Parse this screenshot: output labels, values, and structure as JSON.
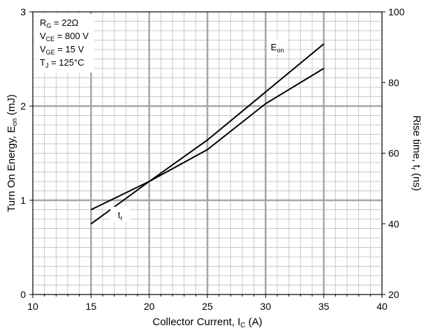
{
  "chart_data": {
    "type": "line",
    "xlim": [
      10,
      40
    ],
    "ylim_left": [
      0,
      3
    ],
    "ylim_right": [
      20,
      100
    ],
    "x_ticks": [
      10,
      15,
      20,
      25,
      30,
      35,
      40
    ],
    "y_left_ticks": [
      0,
      1,
      2,
      3
    ],
    "y_right_ticks": [
      20,
      40,
      60,
      80,
      100
    ],
    "grid": true,
    "xlabel": {
      "main": "Collector Current, I",
      "sub": "C",
      "unit": " (A)"
    },
    "ylabel_left": {
      "main": "Turn On Energy, E",
      "sub": "on",
      "unit": " (mJ)"
    },
    "ylabel_right": {
      "main": "Rise time, t",
      "sub": "r",
      "unit": " (ns)"
    },
    "series": [
      {
        "name": "E",
        "name_sub": "on",
        "axis": "left",
        "x": [
          15,
          20,
          25,
          30,
          35
        ],
        "y": [
          0.75,
          1.2,
          1.64,
          2.15,
          2.66
        ]
      },
      {
        "name": "t",
        "name_sub": "r",
        "axis": "right",
        "x": [
          15,
          20,
          25,
          30,
          35
        ],
        "y": [
          44,
          52,
          61,
          74,
          84
        ]
      }
    ],
    "conditions": [
      {
        "main": "R",
        "sub": "G",
        "rest": " = 22Ω"
      },
      {
        "main": "V",
        "sub": "CE",
        "rest": " = 800 V"
      },
      {
        "main": "V",
        "sub": "GE",
        "rest": " = 15 V"
      },
      {
        "main": "T",
        "sub": "J",
        "rest": " = 125°C"
      }
    ],
    "colors": {
      "line": "#000000",
      "grid_major": "#a6a6a6",
      "grid_minor": "#c8c8c8",
      "background": "#ffffff"
    }
  }
}
